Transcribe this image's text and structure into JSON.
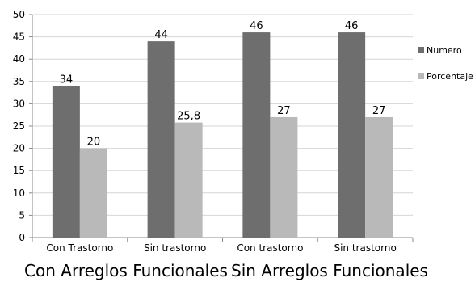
{
  "chart_data": {
    "type": "bar",
    "categories": [
      "Con Trastorno",
      "Sin trastorno",
      "Con trastorno",
      "Sin trastorno"
    ],
    "group_labels": [
      "Con Arreglos Funcionales",
      "Sin Arreglos Funcionales"
    ],
    "series": [
      {
        "name": "Numero",
        "values": [
          34,
          44,
          46,
          46
        ],
        "labels": [
          "34",
          "44",
          "46",
          "46"
        ],
        "color": "#6e6e6e"
      },
      {
        "name": "Porcentaje",
        "values": [
          20,
          25.8,
          27,
          27
        ],
        "labels": [
          "20",
          "25,8",
          "27",
          "27"
        ],
        "color": "#b9b9b9"
      }
    ],
    "ylim": [
      0,
      50
    ],
    "yticks": [
      "0",
      "5",
      "10",
      "15",
      "20",
      "25",
      "30",
      "35",
      "40",
      "45",
      "50"
    ],
    "grid": true,
    "legend": "right"
  }
}
